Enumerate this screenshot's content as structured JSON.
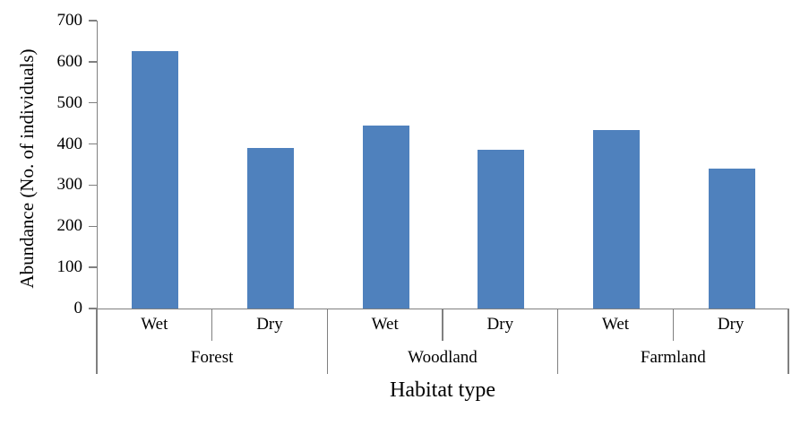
{
  "chart_data": {
    "type": "bar",
    "title": "",
    "xlabel": "Habitat type",
    "ylabel": "Abundance (No. of individuals)",
    "ylim": [
      0,
      700
    ],
    "yticks": [
      0,
      100,
      200,
      300,
      400,
      500,
      600,
      700
    ],
    "grid": false,
    "legend": false,
    "bar_color": "#4F81BD",
    "axis_color": "#808080",
    "groups": [
      {
        "label": "Forest",
        "categories": [
          "Wet",
          "Dry"
        ],
        "values": [
          625,
          390
        ]
      },
      {
        "label": "Woodland",
        "categories": [
          "Wet",
          "Dry"
        ],
        "values": [
          445,
          385
        ]
      },
      {
        "label": "Farmland",
        "categories": [
          "Wet",
          "Dry"
        ],
        "values": [
          435,
          340
        ]
      }
    ]
  }
}
